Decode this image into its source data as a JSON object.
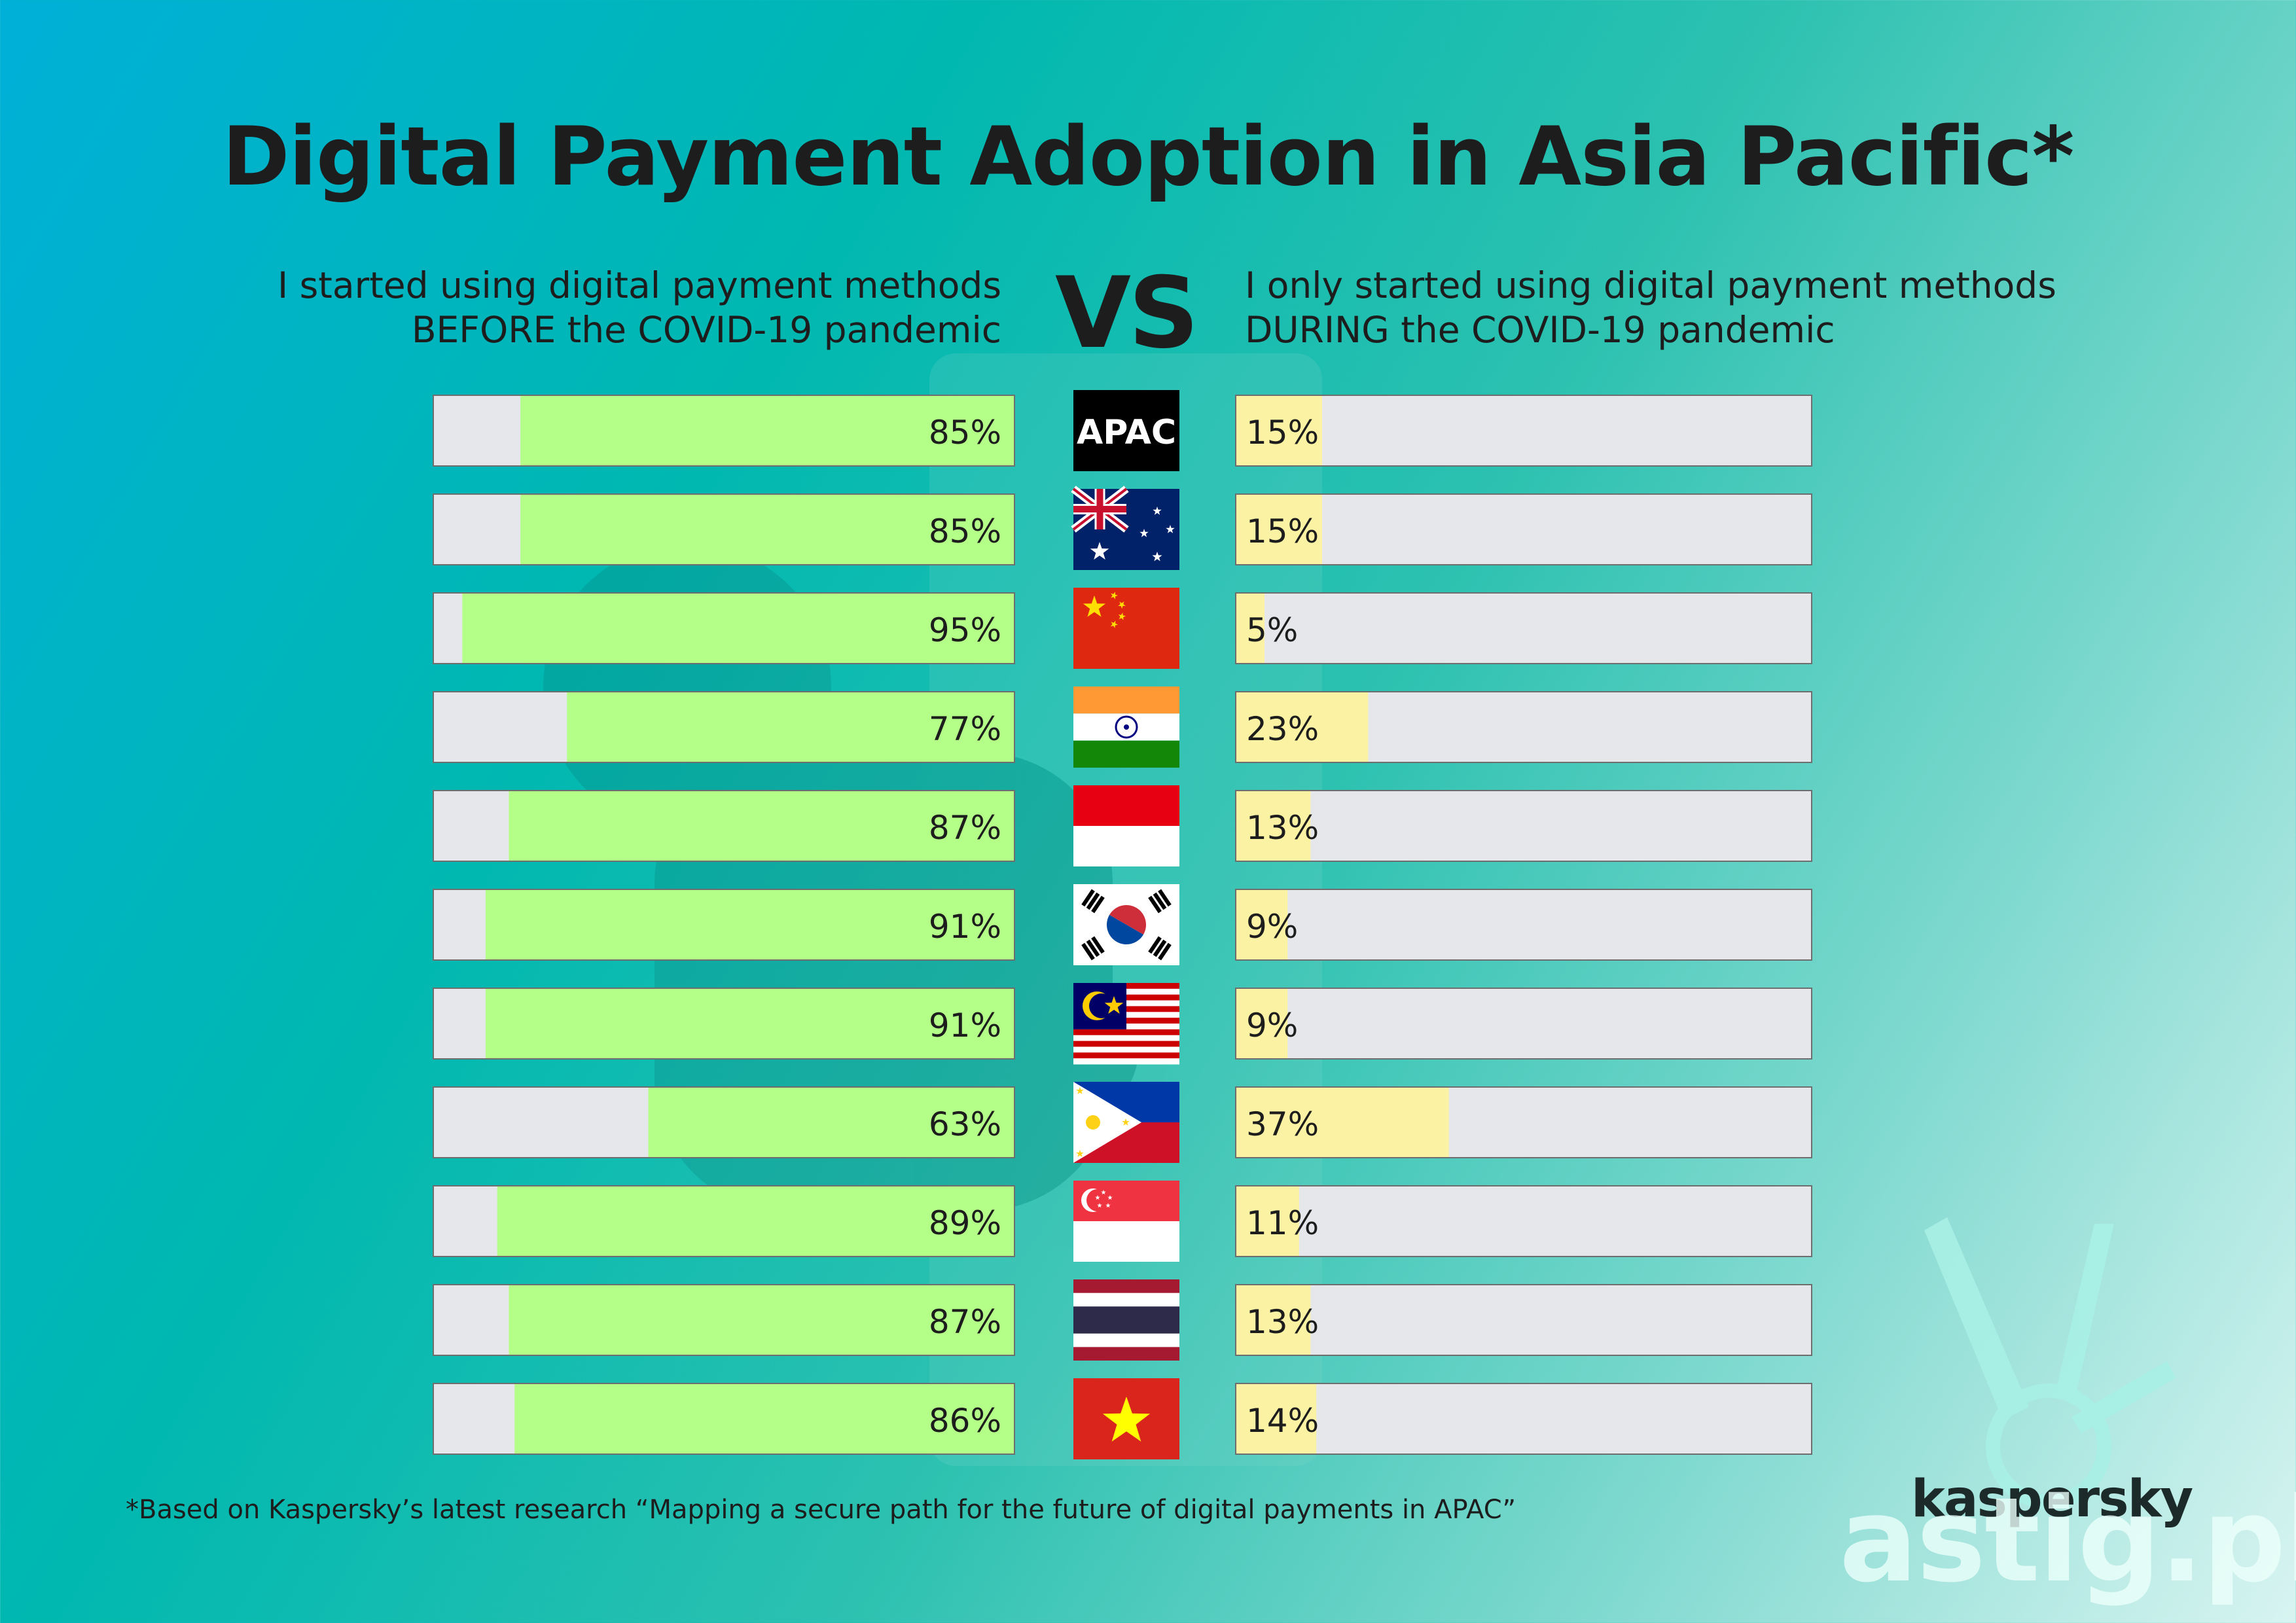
{
  "title": "Digital Payment Adoption in Asia Pacific*",
  "left_header": "I started using digital payment methods BEFORE the COVID-19 pandemic",
  "vs_label": "VS",
  "right_header": "I only started using digital payment methods DURING the COVID-19 pandemic",
  "footnote": "*Based on Kaspersky’s latest research “Mapping a secure path for the future of digital payments in APAC”",
  "brand": "kaspersky",
  "watermark": "astig.ph",
  "colors": {
    "before_bar": "#b3ff87",
    "during_bar": "#fbf3a3",
    "track": "#e5e7ea"
  },
  "chart_data": {
    "type": "bar",
    "categories": [
      "APAC",
      "Australia",
      "China",
      "India",
      "Indonesia",
      "South Korea",
      "Malaysia",
      "Philippines",
      "Singapore",
      "Thailand",
      "Vietnam"
    ],
    "series": [
      {
        "name": "I started using digital payment methods BEFORE the COVID-19 pandemic",
        "values": [
          85,
          85,
          95,
          77,
          87,
          91,
          91,
          63,
          89,
          87,
          86
        ]
      },
      {
        "name": "I only started using digital payment methods DURING the COVID-19 pandemic",
        "values": [
          15,
          15,
          5,
          23,
          13,
          9,
          9,
          37,
          11,
          13,
          14
        ]
      }
    ],
    "value_labels": {
      "before": [
        "85%",
        "85%",
        "95%",
        "77%",
        "87%",
        "91%",
        "91%",
        "63%",
        "89%",
        "87%",
        "86%"
      ],
      "during": [
        "15%",
        "15%",
        "5%",
        "23%",
        "13%",
        "9%",
        "9%",
        "37%",
        "11%",
        "13%",
        "14%"
      ]
    },
    "row_markers": [
      "apac-label",
      "australia-flag-icon",
      "china-flag-icon",
      "india-flag-icon",
      "indonesia-flag-icon",
      "south-korea-flag-icon",
      "malaysia-flag-icon",
      "philippines-flag-icon",
      "singapore-flag-icon",
      "thailand-flag-icon",
      "vietnam-flag-icon"
    ],
    "apac_label": "APAC",
    "xlim": [
      0,
      100
    ]
  }
}
